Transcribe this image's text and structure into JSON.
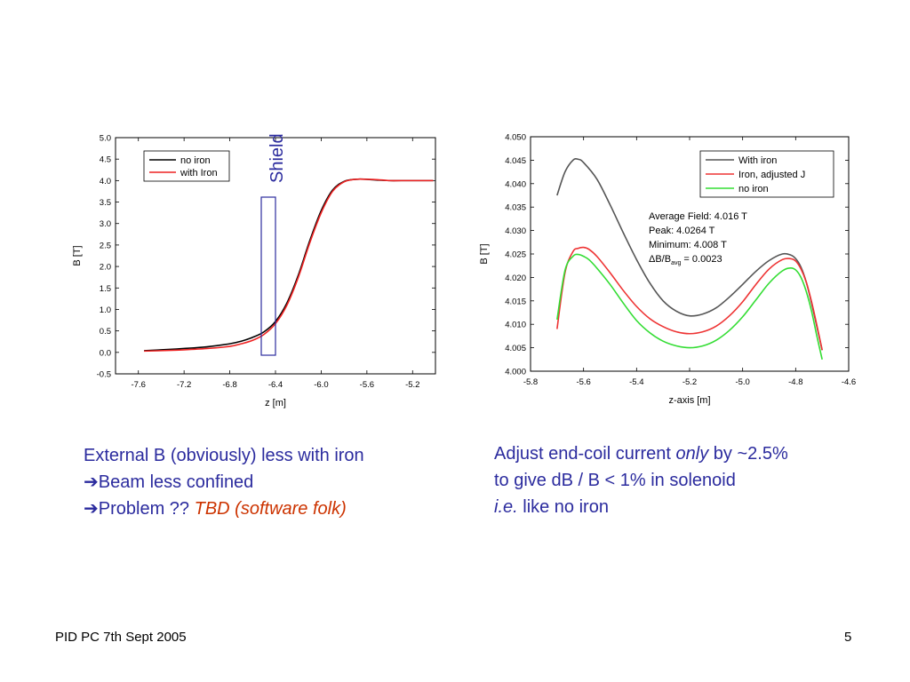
{
  "colors": {
    "text_blue": "#2b2b9e",
    "tbd_red": "#cc3300",
    "shield_box": "#2b2b9e"
  },
  "left_chart": {
    "ylabel": "B [T]",
    "xlabel": "z [m]",
    "shield_label": "Shield",
    "legend": [
      "no iron",
      "with Iron"
    ]
  },
  "right_chart": {
    "ylabel": "B [T]",
    "xlabel": "z-axis [m]",
    "legend": [
      "With iron",
      "Iron, adjusted J",
      "no iron"
    ],
    "annotation": {
      "line1": "Average Field: 4.016 T",
      "line2": "Peak: 4.0264 T",
      "line3": "Minimum: 4.008 T",
      "line4_prefix": "ΔB/B",
      "line4_sub": "avg",
      "line4_suffix": " = 0.0023"
    }
  },
  "chart_data": [
    {
      "type": "line",
      "xlabel": "z [m]",
      "ylabel": "B [T]",
      "xlim": [
        -7.8,
        -5.0
      ],
      "ylim": [
        -0.5,
        5.0
      ],
      "xticks": [
        -7.6,
        -7.2,
        -6.8,
        -6.4,
        -6.0,
        -5.6,
        -5.2
      ],
      "yticks": [
        -0.5,
        0.0,
        0.5,
        1.0,
        1.5,
        2.0,
        2.5,
        3.0,
        3.5,
        4.0,
        4.5,
        5.0
      ],
      "legend_position": "top-left",
      "annotation": "Shield",
      "series": [
        {
          "name": "no iron",
          "color": "#000000",
          "x": [
            -7.55,
            -7.4,
            -7.2,
            -7.0,
            -6.8,
            -6.7,
            -6.6,
            -6.5,
            -6.4,
            -6.3,
            -6.2,
            -6.1,
            -6.0,
            -5.9,
            -5.8,
            -5.7,
            -5.6,
            -5.5,
            -5.4,
            -5.3,
            -5.2,
            -5.1,
            -5.02
          ],
          "y": [
            0.04,
            0.06,
            0.09,
            0.13,
            0.2,
            0.26,
            0.35,
            0.48,
            0.72,
            1.15,
            1.8,
            2.6,
            3.3,
            3.78,
            3.98,
            4.03,
            4.03,
            4.01,
            4.0,
            4.0,
            4.0,
            4.0,
            4.0
          ]
        },
        {
          "name": "with Iron",
          "color": "#ee2222",
          "x": [
            -7.55,
            -7.4,
            -7.2,
            -7.0,
            -6.8,
            -6.7,
            -6.6,
            -6.5,
            -6.4,
            -6.3,
            -6.2,
            -6.1,
            -6.0,
            -5.9,
            -5.8,
            -5.7,
            -5.6,
            -5.5,
            -5.4,
            -5.3,
            -5.2,
            -5.1,
            -5.02
          ],
          "y": [
            0.03,
            0.04,
            0.06,
            0.09,
            0.14,
            0.2,
            0.28,
            0.42,
            0.67,
            1.1,
            1.75,
            2.55,
            3.25,
            3.75,
            3.97,
            4.03,
            4.03,
            4.02,
            4.0,
            4.0,
            4.0,
            4.0,
            4.0
          ]
        }
      ]
    },
    {
      "type": "line",
      "xlabel": "z-axis [m]",
      "ylabel": "B [T]",
      "xlim": [
        -5.8,
        -4.6
      ],
      "ylim": [
        4.0,
        4.05
      ],
      "xticks": [
        -5.8,
        -5.6,
        -5.4,
        -5.2,
        -5.0,
        -4.8,
        -4.6
      ],
      "yticks": [
        4.0,
        4.005,
        4.01,
        4.015,
        4.02,
        4.025,
        4.03,
        4.035,
        4.04,
        4.045,
        4.05
      ],
      "legend_position": "top-right",
      "series": [
        {
          "name": "With iron",
          "color": "#555555",
          "x": [
            -5.7,
            -5.67,
            -5.64,
            -5.62,
            -5.6,
            -5.55,
            -5.5,
            -5.45,
            -5.4,
            -5.35,
            -5.3,
            -5.25,
            -5.2,
            -5.15,
            -5.1,
            -5.05,
            -5.0,
            -4.95,
            -4.9,
            -4.85,
            -4.82,
            -4.8,
            -4.78,
            -4.76,
            -4.74,
            -4.72,
            -4.7
          ],
          "y": [
            4.0375,
            4.0425,
            4.045,
            4.0452,
            4.0445,
            4.041,
            4.0355,
            4.0295,
            4.0238,
            4.0188,
            4.015,
            4.0128,
            4.0118,
            4.0122,
            4.0135,
            4.0158,
            4.0185,
            4.0213,
            4.0236,
            4.025,
            4.0248,
            4.024,
            4.0222,
            4.019,
            4.0145,
            4.0095,
            4.0045
          ]
        },
        {
          "name": "Iron, adjusted J",
          "color": "#ee3333",
          "x": [
            -5.7,
            -5.67,
            -5.64,
            -5.62,
            -5.6,
            -5.58,
            -5.55,
            -5.5,
            -5.45,
            -5.4,
            -5.35,
            -5.3,
            -5.25,
            -5.2,
            -5.15,
            -5.1,
            -5.05,
            -5.0,
            -4.95,
            -4.9,
            -4.85,
            -4.82,
            -4.8,
            -4.78,
            -4.76,
            -4.74,
            -4.72,
            -4.7
          ],
          "y": [
            4.009,
            4.021,
            4.0255,
            4.0262,
            4.0264,
            4.026,
            4.0245,
            4.021,
            4.0172,
            4.0138,
            4.0112,
            4.0095,
            4.0084,
            4.008,
            4.0084,
            4.0096,
            4.0118,
            4.0148,
            4.0185,
            4.0218,
            4.0238,
            4.024,
            4.0235,
            4.0218,
            4.019,
            4.0148,
            4.0098,
            4.0045
          ]
        },
        {
          "name": "no iron",
          "color": "#33dd33",
          "x": [
            -5.7,
            -5.67,
            -5.64,
            -5.62,
            -5.6,
            -5.58,
            -5.55,
            -5.5,
            -5.45,
            -5.4,
            -5.35,
            -5.3,
            -5.25,
            -5.2,
            -5.15,
            -5.1,
            -5.05,
            -5.0,
            -4.95,
            -4.9,
            -4.85,
            -4.82,
            -4.8,
            -4.78,
            -4.76,
            -4.74,
            -4.72,
            -4.7
          ],
          "y": [
            4.011,
            4.0215,
            4.0245,
            4.0249,
            4.0245,
            4.0238,
            4.022,
            4.0185,
            4.0145,
            4.0108,
            4.0082,
            4.0064,
            4.0054,
            4.005,
            4.0054,
            4.0066,
            4.0087,
            4.0116,
            4.0152,
            4.0188,
            4.0214,
            4.022,
            4.0216,
            4.02,
            4.017,
            4.0128,
            4.0075,
            4.0025
          ]
        }
      ]
    }
  ],
  "left_text": {
    "line1": "External B (obviously) less with iron",
    "line2_arrow": "➔",
    "line2": "Beam less confined",
    "line3_arrow": "➔",
    "line3_a": "Problem ?? ",
    "line3_b": "TBD (software folk)"
  },
  "right_text": {
    "line1_a": "Adjust end-coil current ",
    "line1_b": "only",
    "line1_c": " by ~2.5%",
    "line2": "to give dB / B < 1% in solenoid",
    "line3_a": "i.e.",
    "line3_b": " like no iron"
  },
  "footer": {
    "left": "PID PC  7th Sept  2005",
    "page_number": "5"
  }
}
